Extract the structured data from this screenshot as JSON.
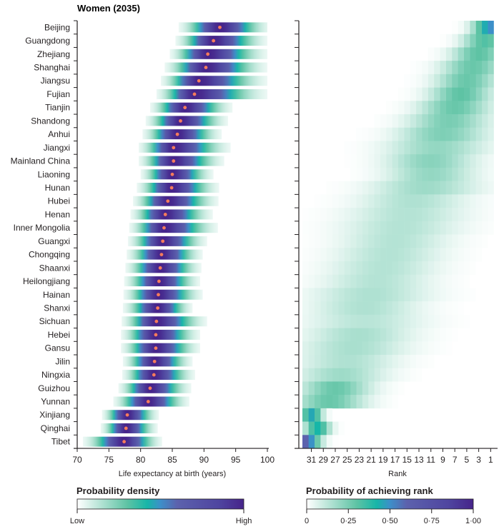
{
  "chart_data": [
    {
      "type": "heatmap",
      "subtype": "density-strip",
      "title": "Women (2035)",
      "xlabel": "Life expectancy at birth (years)",
      "xlim": [
        70,
        100
      ],
      "xticks": [
        "70",
        "75",
        "80",
        "85",
        "90",
        "95",
        "100"
      ],
      "xtick_values": [
        70,
        75,
        80,
        85,
        90,
        95,
        100
      ],
      "categories": [
        "Beijing",
        "Guangdong",
        "Zhejiang",
        "Shanghai",
        "Jiangsu",
        "Fujian",
        "Tianjin",
        "Shandong",
        "Anhui",
        "Jiangxi",
        "Mainland China",
        "Liaoning",
        "Hunan",
        "Hubei",
        "Henan",
        "Inner Mongolia",
        "Guangxi",
        "Chongqing",
        "Shaanxi",
        "Heilongjiang",
        "Hainan",
        "Shanxi",
        "Sichuan",
        "Hebei",
        "Gansu",
        "Jilin",
        "Ningxia",
        "Guizhou",
        "Yunnan",
        "Xinjiang",
        "Qinghai",
        "Tibet"
      ],
      "median": [
        92.5,
        91.5,
        90.6,
        90.3,
        89.2,
        88.5,
        87.0,
        86.3,
        85.8,
        85.2,
        85.2,
        85.0,
        84.9,
        84.3,
        83.9,
        83.7,
        83.5,
        83.3,
        83.1,
        82.9,
        82.8,
        82.7,
        82.5,
        82.4,
        82.4,
        82.2,
        82.1,
        81.5,
        81.2,
        77.9,
        77.7,
        77.4
      ],
      "spread_low": [
        6.5,
        6.0,
        6.0,
        6.5,
        6.0,
        6.0,
        5.5,
        5.5,
        5.5,
        5.5,
        5.5,
        5.0,
        5.5,
        5.5,
        5.5,
        5.5,
        5.5,
        5.5,
        5.5,
        5.5,
        5.5,
        5.5,
        5.5,
        5.5,
        5.5,
        5.0,
        5.0,
        5.0,
        5.5,
        4.0,
        4.0,
        6.5
      ],
      "spread_high": [
        8.0,
        8.5,
        9.5,
        9.7,
        10.8,
        11.5,
        7.5,
        7.5,
        7.0,
        9.0,
        8.0,
        6.5,
        7.5,
        8.0,
        7.5,
        8.5,
        7.0,
        6.5,
        6.5,
        6.5,
        7.0,
        5.5,
        8.0,
        7.0,
        7.0,
        6.0,
        6.5,
        6.5,
        6.5,
        5.0,
        5.0,
        6.0
      ],
      "legend": {
        "title": "Probability density",
        "low_label": "Low",
        "high_label": "High"
      },
      "point_color": "#f47b5c"
    },
    {
      "type": "heatmap",
      "xlabel": "Rank",
      "xticks": [
        "31",
        "29",
        "27",
        "25",
        "23",
        "21",
        "19",
        "17",
        "15",
        "13",
        "11",
        "9",
        "7",
        "5",
        "3",
        "1"
      ],
      "xtick_values": [
        31,
        29,
        27,
        25,
        23,
        21,
        19,
        17,
        15,
        13,
        11,
        9,
        7,
        5,
        3,
        1
      ],
      "rank_range": [
        32,
        1
      ],
      "categories": [
        "Beijing",
        "Guangdong",
        "Zhejiang",
        "Shanghai",
        "Jiangsu",
        "Fujian",
        "Tianjin",
        "Shandong",
        "Anhui",
        "Jiangxi",
        "Mainland China",
        "Liaoning",
        "Hunan",
        "Hubei",
        "Henan",
        "Inner Mongolia",
        "Guangxi",
        "Chongqing",
        "Shaanxi",
        "Heilongjiang",
        "Hainan",
        "Shanxi",
        "Sichuan",
        "Hebei",
        "Gansu",
        "Jilin",
        "Ningxia",
        "Guizhou",
        "Yunnan",
        "Xinjiang",
        "Qinghai",
        "Tibet"
      ],
      "peak_rank": [
        1,
        2,
        3,
        4,
        5,
        6,
        7,
        8,
        9,
        10,
        11,
        11,
        12,
        14,
        15,
        16,
        17,
        18,
        19,
        20,
        21,
        22,
        22,
        23,
        24,
        25,
        26,
        27,
        28,
        31,
        30,
        32
      ],
      "peak_probability": [
        0.5,
        0.32,
        0.3,
        0.28,
        0.28,
        0.3,
        0.28,
        0.25,
        0.24,
        0.2,
        0.22,
        0.2,
        0.18,
        0.15,
        0.14,
        0.14,
        0.14,
        0.14,
        0.14,
        0.14,
        0.15,
        0.15,
        0.13,
        0.16,
        0.16,
        0.15,
        0.18,
        0.28,
        0.28,
        0.45,
        0.42,
        0.6
      ],
      "rank_spread": [
        2.0,
        2.5,
        3.0,
        3.5,
        3.5,
        3.5,
        4.0,
        4.5,
        5.0,
        5.5,
        5.0,
        5.0,
        6.0,
        6.0,
        6.5,
        6.5,
        6.0,
        6.0,
        6.0,
        6.0,
        6.5,
        6.0,
        6.5,
        6.0,
        6.0,
        5.5,
        5.0,
        4.0,
        4.0,
        1.2,
        1.4,
        1.6
      ],
      "legend": {
        "title": "Probability of achieving rank",
        "ticks": [
          "0",
          "0·25",
          "0·50",
          "0·75",
          "1·00"
        ],
        "tick_values": [
          0,
          0.25,
          0.5,
          0.75,
          1.0
        ]
      }
    }
  ],
  "colors": {
    "scale": [
      "#ffffff",
      "#5ec3a4",
      "#17b6a8",
      "#3d8fc9",
      "#5c5faa",
      "#4b3a98",
      "#46248a"
    ],
    "axis": "#231f20"
  }
}
